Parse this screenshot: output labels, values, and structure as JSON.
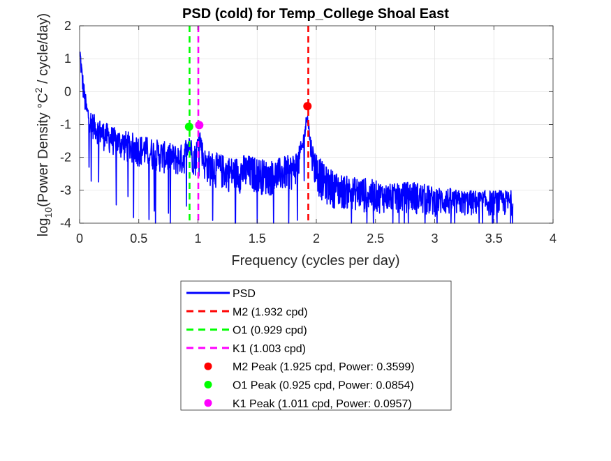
{
  "chart_data": {
    "type": "line",
    "title": "PSD (cold) for Temp_College Shoal East",
    "xlabel": "Frequency (cycles per day)",
    "ylabel_parts": {
      "log": "log",
      "log_sub": "10",
      "main": "(Power Density ",
      "unit": "°C",
      "unit_sup": "2",
      "tail": " / cycle/day)"
    },
    "xlim": [
      0,
      4
    ],
    "ylim": [
      -4,
      2
    ],
    "x_ticks": [
      "0",
      "0.5",
      "1",
      "1.5",
      "2",
      "2.5",
      "3",
      "3.5",
      "4"
    ],
    "y_ticks": [
      "2",
      "1",
      "0",
      "-1",
      "-2",
      "-3",
      "-4"
    ],
    "grid": true,
    "legend_position": "below plot",
    "psd_series": {
      "name": "PSD",
      "color": "#0000ff",
      "x_max": 3.66,
      "envelope": {
        "x": [
          0.0,
          0.01,
          0.02,
          0.04,
          0.06,
          0.1,
          0.15,
          0.2,
          0.3,
          0.4,
          0.5,
          0.6,
          0.7,
          0.8,
          0.88,
          0.925,
          0.95,
          0.98,
          1.011,
          1.05,
          1.1,
          1.2,
          1.3,
          1.4,
          1.5,
          1.6,
          1.7,
          1.8,
          1.85,
          1.88,
          1.9,
          1.925,
          1.95,
          1.98,
          2.02,
          2.06,
          2.1,
          2.2,
          2.3,
          2.4,
          2.5,
          2.6,
          2.7,
          2.8,
          2.9,
          3.0,
          3.1,
          3.2,
          3.3,
          3.4,
          3.5,
          3.6,
          3.66
        ],
        "upper": [
          1.5,
          1.2,
          0.8,
          0.2,
          -0.3,
          -0.6,
          -0.8,
          -0.9,
          -1.1,
          -1.2,
          -1.3,
          -1.4,
          -1.5,
          -1.6,
          -1.6,
          -1.1,
          -1.5,
          -1.6,
          -1.0,
          -1.7,
          -1.8,
          -1.9,
          -2.0,
          -1.9,
          -2.0,
          -2.1,
          -2.0,
          -1.9,
          -1.7,
          -1.4,
          -1.1,
          -0.45,
          -1.3,
          -1.7,
          -1.9,
          -2.2,
          -2.3,
          -2.5,
          -2.6,
          -2.6,
          -2.7,
          -2.8,
          -2.8,
          -2.7,
          -2.8,
          -2.9,
          -2.9,
          -3.0,
          -3.0,
          -3.0,
          -3.0,
          -3.0,
          -3.0
        ],
        "lower": [
          1.0,
          0.5,
          0.0,
          -0.6,
          -1.0,
          -1.4,
          -1.6,
          -1.8,
          -2.0,
          -2.2,
          -2.3,
          -2.4,
          -2.5,
          -2.6,
          -2.6,
          -1.8,
          -2.5,
          -2.6,
          -1.6,
          -2.7,
          -2.9,
          -3.0,
          -3.1,
          -3.1,
          -3.1,
          -3.2,
          -3.1,
          -3.0,
          -2.7,
          -2.1,
          -1.6,
          -0.9,
          -2.0,
          -2.8,
          -3.2,
          -3.4,
          -3.5,
          -3.6,
          -3.6,
          -3.7,
          -3.7,
          -3.7,
          -3.7,
          -3.7,
          -3.8,
          -3.8,
          -3.8,
          -3.8,
          -3.8,
          -3.8,
          -3.8,
          -3.8,
          -3.8
        ]
      }
    },
    "reference_lines": [
      {
        "name": "M2 (1.932 cpd)",
        "x": 1.932,
        "color": "#ff0000"
      },
      {
        "name": "O1 (0.929 cpd)",
        "x": 0.929,
        "color": "#00ff00"
      },
      {
        "name": "K1 (1.003 cpd)",
        "x": 1.003,
        "color": "#ff00ff"
      }
    ],
    "peaks": [
      {
        "name": "M2 Peak (1.925 cpd, Power: 0.3599)",
        "x": 1.925,
        "power": 0.3599,
        "color": "#ff0000"
      },
      {
        "name": "O1 Peak (0.925 cpd, Power: 0.0854)",
        "x": 0.925,
        "power": 0.0854,
        "color": "#00ff00"
      },
      {
        "name": "K1 Peak (1.011 cpd, Power: 0.0957)",
        "x": 1.011,
        "power": 0.0957,
        "color": "#ff00ff"
      }
    ]
  }
}
